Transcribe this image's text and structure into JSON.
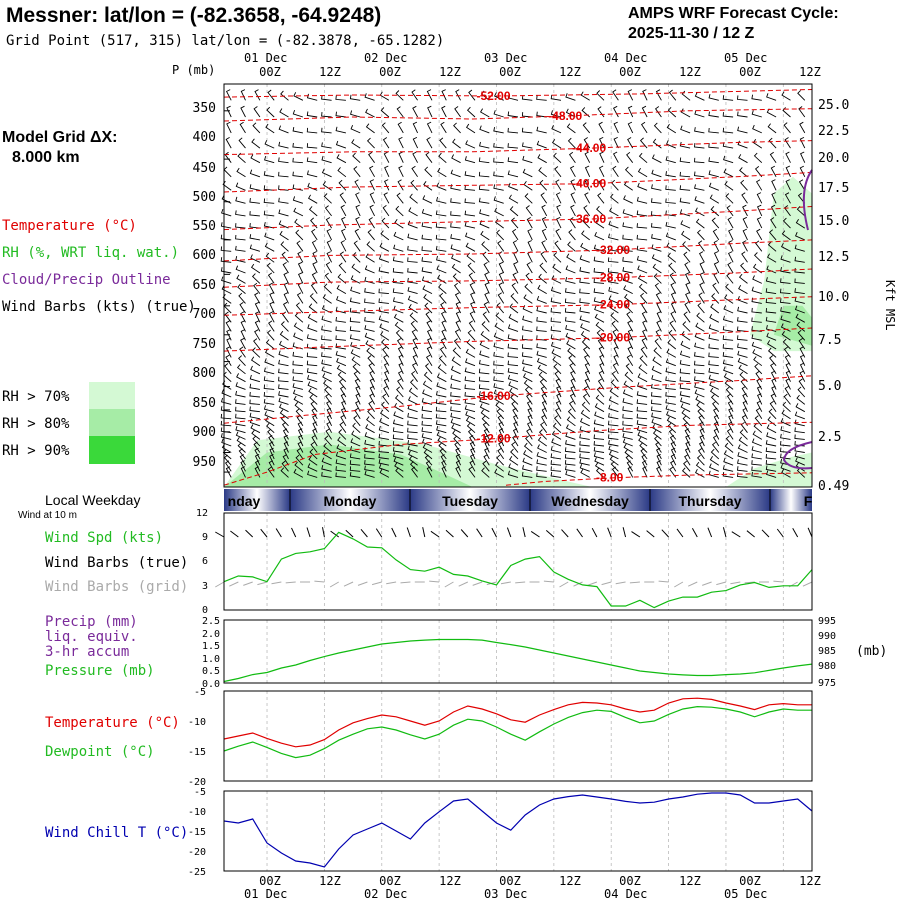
{
  "header": {
    "station_title": "Messner:  lat/lon = (-82.3658, -64.9248)",
    "grid_point": "Grid Point (517, 315) lat/lon = (-82.3878, -65.1282)",
    "forecast_line1": "AMPS WRF Forecast Cycle:",
    "forecast_line2": "2025-11-30 / 12  Z"
  },
  "time_axis": {
    "hour_labels": [
      "00Z",
      "12Z",
      "00Z",
      "12Z",
      "00Z",
      "12Z",
      "00Z",
      "12Z",
      "00Z",
      "12Z"
    ],
    "date_labels": [
      "01 Dec",
      "02 Dec",
      "03 Dec",
      "04 Dec",
      "05 Dec"
    ],
    "date_labels_bottom": [
      "01 Dec",
      "02 Dec",
      "03 Dec",
      "04 Dec",
      "05 Dec"
    ]
  },
  "sounding_panel": {
    "p_axis_title": "P (mb)",
    "pressure_ticks": [
      "350",
      "400",
      "450",
      "500",
      "550",
      "600",
      "650",
      "700",
      "750",
      "800",
      "850",
      "900",
      "950"
    ],
    "height_ticks": [
      "25.0",
      "22.5",
      "20.0",
      "17.5",
      "15.0",
      "12.5",
      "10.0",
      "7.5",
      "5.0",
      "2.5",
      "0.49"
    ],
    "height_axis_title": "Kft MSL",
    "model_grid_label": "Model Grid ΔX:",
    "model_grid_value": "8.000 km",
    "legend": {
      "temperature": "Temperature (°C)",
      "rh": "RH (%, WRT liq. wat.)",
      "cloud": "Cloud/Precip Outline",
      "wind": "Wind Barbs (kts) (true)"
    },
    "rh_legend": {
      "gt70": "RH > 70%",
      "gt80": "RH > 80%",
      "gt90": "RH > 90%",
      "colors": [
        "#d4f9d4",
        "#a6eca6",
        "#3ad93a"
      ]
    },
    "isotherm_labels": [
      "-52.00",
      "-48.00",
      "-44.00",
      "-40.00",
      "-36.00",
      "-32.00",
      "-28.00",
      "-24.00",
      "-20.00",
      "-16.00",
      "-12.00",
      "-8.00"
    ],
    "isotherm_values": [
      -52,
      -48,
      -44,
      -40,
      -36,
      -32,
      -28,
      -24,
      -20,
      -16,
      -12,
      -8
    ]
  },
  "weekday_bar": {
    "label": "Local Weekday",
    "sublabel": "Wind at 10 m",
    "days": [
      "nday",
      "Monday",
      "Tuesday",
      "Wednesday",
      "Thursday",
      "F"
    ]
  },
  "wind_panel": {
    "y_ticks": [
      "12",
      "9",
      "6",
      "3",
      "0"
    ],
    "legend_speed": "Wind Spd (kts)",
    "legend_true": "Wind Barbs (true)",
    "legend_grid": "Wind Barbs (grid)"
  },
  "precip_panel": {
    "left_ticks": [
      "2.5",
      "2.0",
      "1.5",
      "1.0",
      "0.5",
      "0.0"
    ],
    "right_ticks": [
      "995",
      "990",
      "985",
      "980",
      "975"
    ],
    "right_unit": "(mb)",
    "legend_precip": "Precip (mm)",
    "legend_liq": "liq. equiv.",
    "legend_accum": "3-hr accum",
    "legend_pressure": "Pressure (mb)"
  },
  "temp_panel": {
    "y_ticks": [
      "-5",
      "-10",
      "-15",
      "-20"
    ],
    "legend_temp": "Temperature (°C)",
    "legend_dew": "Dewpoint (°C)"
  },
  "chill_panel": {
    "y_ticks": [
      "-5",
      "-10",
      "-15",
      "-20",
      "-25"
    ],
    "legend": "Wind Chill T (°C)"
  },
  "colors": {
    "temperature": "#e00000",
    "rh_text": "#22bb22",
    "cloud": "#7a2a9a",
    "wind_grid": "#aaaaaa",
    "wind_chill": "#0000b0",
    "pressure": "#11bb11",
    "weekday_dark": "#2b3a86",
    "weekday_light": "#ffffff"
  },
  "chart_data": {
    "type": "line",
    "time_axis": {
      "unit": "forecast hours from 2025-11-30 12Z",
      "range": [
        3,
        126
      ],
      "major_ticks": [
        12,
        24,
        36,
        48,
        60,
        72,
        84,
        96,
        108,
        120
      ]
    },
    "sounding": {
      "pressure_range_mb": [
        325,
        990
      ],
      "isotherms_degC": [
        -52,
        -48,
        -44,
        -40,
        -36,
        -32,
        -28,
        -24,
        -20,
        -16,
        -12,
        -8
      ],
      "isotherm_paths": [
        {
          "value": -52,
          "points": [
            [
              3,
              337
            ],
            [
              30,
              335
            ],
            [
              60,
              336
            ],
            [
              90,
              334
            ],
            [
              126,
              330
            ]
          ]
        },
        {
          "value": -48,
          "points": [
            [
              3,
              360
            ],
            [
              30,
              356
            ],
            [
              55,
              358
            ],
            [
              75,
              355
            ],
            [
              100,
              350
            ],
            [
              126,
              348
            ]
          ]
        },
        {
          "value": -44,
          "points": [
            [
              3,
              395
            ],
            [
              30,
              392
            ],
            [
              55,
              392
            ],
            [
              80,
              388
            ],
            [
              110,
              382
            ],
            [
              126,
              380
            ]
          ]
        },
        {
          "value": -40,
          "points": [
            [
              3,
              438
            ],
            [
              30,
              432
            ],
            [
              55,
              430
            ],
            [
              80,
              428
            ],
            [
              110,
              420
            ],
            [
              126,
              415
            ]
          ]
        },
        {
          "value": -36,
          "points": [
            [
              3,
              486
            ],
            [
              25,
              480
            ],
            [
              50,
              476
            ],
            [
              80,
              472
            ],
            [
              110,
              462
            ],
            [
              126,
              456
            ]
          ]
        },
        {
          "value": -32,
          "points": [
            [
              3,
              530
            ],
            [
              25,
              522
            ],
            [
              55,
              520
            ],
            [
              85,
              514
            ],
            [
              110,
              505
            ],
            [
              126,
              500
            ]
          ]
        },
        {
          "value": -28,
          "points": [
            [
              3,
              570
            ],
            [
              25,
              562
            ],
            [
              55,
              560
            ],
            [
              85,
              555
            ],
            [
              110,
              548
            ],
            [
              126,
              542
            ]
          ]
        },
        {
          "value": -24,
          "points": [
            [
              3,
              616
            ],
            [
              25,
              610
            ],
            [
              55,
              603
            ],
            [
              85,
              598
            ],
            [
              110,
              590
            ],
            [
              126,
              585
            ]
          ]
        },
        {
          "value": -20,
          "points": [
            [
              3,
              680
            ],
            [
              25,
              672
            ],
            [
              55,
              662
            ],
            [
              85,
              655
            ],
            [
              110,
              645
            ],
            [
              126,
              638
            ]
          ]
        },
        {
          "value": -16,
          "points": [
            [
              3,
              830
            ],
            [
              20,
              812
            ],
            [
              40,
              792
            ],
            [
              60,
              770
            ],
            [
              85,
              752
            ],
            [
              110,
              738
            ],
            [
              126,
              728
            ]
          ]
        },
        {
          "value": -12,
          "points": [
            [
              3,
              985
            ],
            [
              12,
              950
            ],
            [
              22,
              905
            ],
            [
              40,
              880
            ],
            [
              60,
              866
            ],
            [
              80,
              848
            ],
            [
              100,
              835
            ],
            [
              126,
              828
            ]
          ]
        },
        {
          "value": -8,
          "points": [
            [
              62,
              985
            ],
            [
              70,
              975
            ],
            [
              85,
              965
            ],
            [
              100,
              958
            ],
            [
              126,
              952
            ]
          ]
        }
      ],
      "rh_regions": [
        {
          "level": ">70%",
          "points": [
            [
              3,
              990
            ],
            [
              10,
              870
            ],
            [
              25,
              850
            ],
            [
              45,
              880
            ],
            [
              60,
              930
            ],
            [
              75,
              975
            ],
            [
              80,
              990
            ]
          ]
        },
        {
          "level": ">80%",
          "points": [
            [
              3,
              990
            ],
            [
              12,
              900
            ],
            [
              25,
              880
            ],
            [
              40,
              905
            ],
            [
              50,
              960
            ],
            [
              55,
              990
            ]
          ]
        },
        {
          "level": ">90%",
          "points": [
            [
              114,
              990
            ],
            [
              118,
              950
            ],
            [
              124,
              930
            ],
            [
              126,
              930
            ],
            [
              126,
              990
            ]
          ]
        },
        {
          "level": ">70%",
          "points": [
            [
              108,
              990
            ],
            [
              114,
              940
            ],
            [
              122,
              910
            ],
            [
              126,
              900
            ],
            [
              126,
              990
            ]
          ]
        },
        {
          "level": ">70%",
          "points": [
            [
              113,
              650
            ],
            [
              116,
              560
            ],
            [
              118,
              440
            ],
            [
              122,
              420
            ],
            [
              126,
              440
            ],
            [
              126,
              680
            ],
            [
              118,
              680
            ]
          ]
        },
        {
          "level": ">80%",
          "points": [
            [
              118,
              650
            ],
            [
              120,
              600
            ],
            [
              124,
              600
            ],
            [
              126,
              620
            ],
            [
              126,
              670
            ]
          ]
        }
      ]
    },
    "wind_speed_kts": {
      "range": [
        0,
        12
      ],
      "x": [
        3,
        6,
        9,
        12,
        15,
        18,
        21,
        24,
        27,
        30,
        33,
        36,
        39,
        42,
        45,
        48,
        51,
        54,
        57,
        60,
        63,
        66,
        69,
        72,
        75,
        78,
        81,
        84,
        87,
        90,
        93,
        96,
        99,
        102,
        105,
        108,
        111,
        114,
        117,
        120,
        123,
        126
      ],
      "values": [
        3.5,
        4.2,
        4.1,
        3.5,
        6.3,
        7.0,
        7.2,
        7.6,
        9.6,
        8.8,
        7.8,
        7.7,
        6.2,
        5.0,
        4.8,
        5.3,
        4.4,
        4.2,
        3.6,
        3.1,
        5.5,
        6.3,
        6.6,
        4.7,
        3.8,
        3.1,
        2.9,
        0.5,
        0.5,
        1.2,
        0.3,
        1.1,
        1.6,
        1.6,
        2.2,
        2.4,
        3.1,
        3.4,
        2.8,
        3.0,
        3.0,
        5.0
      ]
    },
    "pressure_mb": {
      "range": [
        975,
        996
      ],
      "x": [
        3,
        6,
        9,
        12,
        15,
        18,
        21,
        24,
        27,
        30,
        33,
        36,
        39,
        42,
        45,
        48,
        51,
        54,
        57,
        60,
        63,
        66,
        69,
        72,
        75,
        78,
        81,
        84,
        87,
        90,
        93,
        96,
        99,
        102,
        105,
        108,
        111,
        114,
        117,
        120,
        123,
        126
      ],
      "values": [
        975.5,
        976.5,
        977.8,
        978.5,
        980,
        981,
        982.5,
        983.8,
        985,
        986,
        987,
        988,
        988.5,
        989,
        989.3,
        989.5,
        989.5,
        989.5,
        989.3,
        988.5,
        987.8,
        987,
        986,
        985,
        984,
        983,
        982,
        981,
        980,
        979,
        978.5,
        978,
        977.7,
        977.5,
        977.5,
        977.8,
        978,
        978.4,
        979.2,
        980,
        980.7,
        981.3
      ]
    },
    "precip_mm": {
      "range": [
        0,
        2.5
      ],
      "x": [],
      "values": []
    },
    "temperature_degC": {
      "range": [
        -20,
        -5
      ],
      "x": [
        3,
        6,
        9,
        12,
        15,
        18,
        21,
        24,
        27,
        30,
        33,
        36,
        39,
        42,
        45,
        48,
        51,
        54,
        57,
        60,
        63,
        66,
        69,
        72,
        75,
        78,
        81,
        84,
        87,
        90,
        93,
        96,
        99,
        102,
        105,
        108,
        111,
        114,
        117,
        120,
        123,
        126
      ],
      "values": [
        -13.0,
        -12.5,
        -12.0,
        -12.9,
        -13.7,
        -14.3,
        -14.0,
        -13.1,
        -11.5,
        -10.3,
        -9.6,
        -9.0,
        -9.3,
        -10.0,
        -10.7,
        -10.0,
        -8.5,
        -7.5,
        -8.0,
        -8.8,
        -9.8,
        -10.2,
        -9.0,
        -8.1,
        -7.3,
        -6.9,
        -7.0,
        -7.3,
        -8.0,
        -8.5,
        -8.2,
        -7.0,
        -6.3,
        -6.2,
        -6.4,
        -7.0,
        -7.5,
        -8.1,
        -7.3,
        -7.1,
        -7.3,
        -7.3
      ]
    },
    "dewpoint_degC": {
      "range": [
        -20,
        -5
      ],
      "x": [
        3,
        6,
        9,
        12,
        15,
        18,
        21,
        24,
        27,
        30,
        33,
        36,
        39,
        42,
        45,
        48,
        51,
        54,
        57,
        60,
        63,
        66,
        69,
        72,
        75,
        78,
        81,
        84,
        87,
        90,
        93,
        96,
        99,
        102,
        105,
        108,
        111,
        114,
        117,
        120,
        123,
        126
      ],
      "values": [
        -15.0,
        -14.2,
        -13.5,
        -14.4,
        -15.4,
        -16.1,
        -15.7,
        -14.6,
        -13.2,
        -12.2,
        -11.3,
        -11.0,
        -11.5,
        -12.3,
        -13.0,
        -12.2,
        -10.7,
        -9.7,
        -10.0,
        -11.0,
        -12.2,
        -13.2,
        -11.8,
        -10.5,
        -9.4,
        -8.6,
        -8.2,
        -8.4,
        -9.4,
        -10.3,
        -10.0,
        -8.9,
        -8.0,
        -7.6,
        -7.7,
        -8.0,
        -8.5,
        -9.3,
        -8.5,
        -8.0,
        -8.2,
        -8.2
      ]
    },
    "wind_chill_degC": {
      "range": [
        -25,
        -5
      ],
      "x": [
        3,
        6,
        9,
        12,
        15,
        18,
        21,
        24,
        27,
        30,
        33,
        36,
        39,
        42,
        45,
        48,
        51,
        54,
        57,
        60,
        63,
        66,
        69,
        72,
        75,
        78,
        81,
        84,
        87,
        90,
        93,
        96,
        99,
        102,
        105,
        108,
        111,
        114,
        117,
        120,
        123,
        126
      ],
      "values": [
        -12.5,
        -13.0,
        -12.0,
        -18.0,
        -20.5,
        -22.5,
        -23.0,
        -24.0,
        -19.5,
        -16.0,
        -14.5,
        -13.0,
        -15.0,
        -17.0,
        -13.0,
        -10.2,
        -7.5,
        -7.0,
        -10.0,
        -13.0,
        -14.8,
        -11.0,
        -8.5,
        -7.0,
        -6.4,
        -6.0,
        -6.5,
        -7.0,
        -7.6,
        -8.0,
        -7.8,
        -7.0,
        -6.5,
        -5.8,
        -5.5,
        -5.5,
        -6.0,
        -8.0,
        -8.0,
        -7.5,
        -7.0,
        -10.0
      ]
    }
  }
}
